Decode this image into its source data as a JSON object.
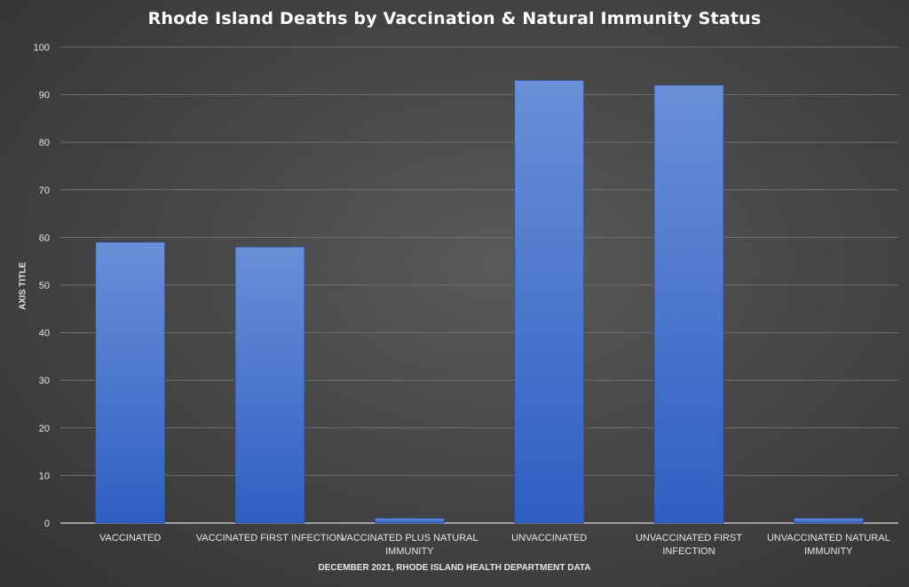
{
  "chart_data": {
    "type": "bar",
    "title": "Rhode Island Deaths by Vaccination & Natural Immunity Status",
    "ylabel": "AXIS TITLE",
    "xlabel": "DECEMBER 2021, RHODE ISLAND HEALTH DEPARTMENT DATA",
    "categories": [
      "VACCINATED",
      "VACCINATED FIRST INFECTION",
      "VACCINATED PLUS NATURAL IMMUNITY",
      "UNVACCINATED",
      "UNVACCINATED FIRST INFECTION",
      "UNVACCINATED NATURAL IMMUNITY"
    ],
    "category_lines": [
      [
        "VACCINATED"
      ],
      [
        "VACCINATED FIRST INFECTION"
      ],
      [
        "VACCINATED PLUS NATURAL",
        "IMMUNITY"
      ],
      [
        "UNVACCINATED"
      ],
      [
        "UNVACCINATED FIRST",
        "INFECTION"
      ],
      [
        "UNVACCINATED NATURAL",
        "IMMUNITY"
      ]
    ],
    "values": [
      59,
      58,
      1,
      93,
      92,
      1
    ],
    "ylim": [
      0,
      100
    ],
    "yticks": [
      0,
      10,
      20,
      30,
      40,
      50,
      60,
      70,
      80,
      90,
      100
    ],
    "grid": true,
    "legend": "none",
    "colors": {
      "bar_top": "#6a8fd8",
      "bar_bottom": "#2f5fc4",
      "grid": "#6e6e6e",
      "axis": "#bfbfbf",
      "text": "#e6e6e6"
    }
  }
}
